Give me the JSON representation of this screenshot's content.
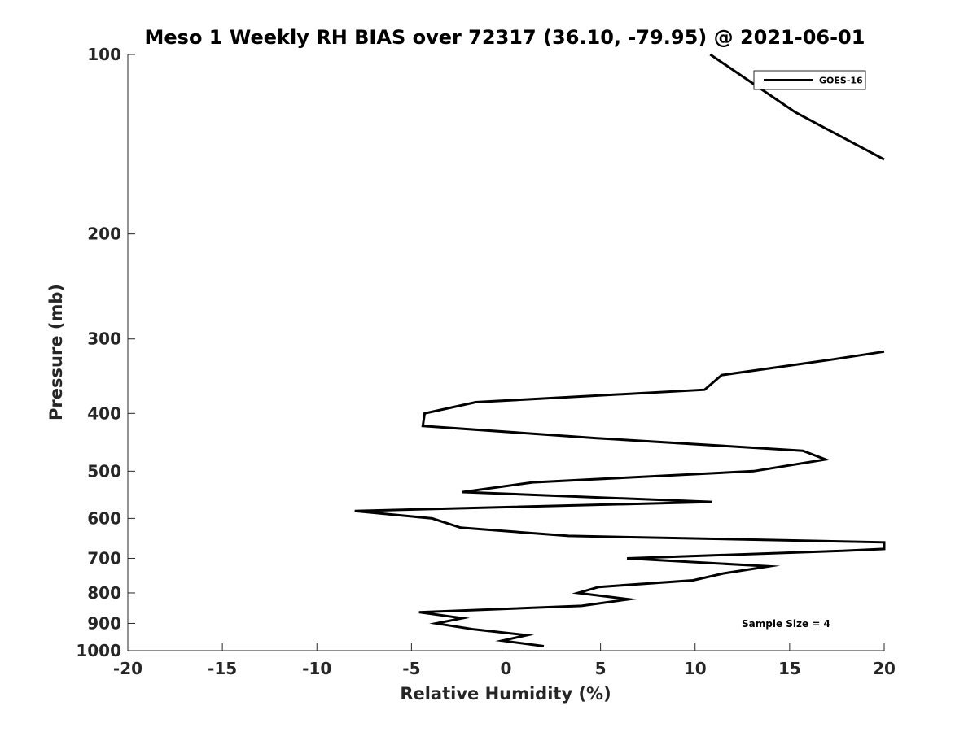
{
  "chart_data": {
    "type": "line",
    "title": "Meso 1 Weekly RH BIAS over 72317 (36.10, -79.95) @ 2021-06-01",
    "xlabel": "Relative Humidity (%)",
    "ylabel": "Pressure (mb)",
    "xlim": [
      -20,
      20
    ],
    "ylim": [
      100,
      1000
    ],
    "y_scale": "log",
    "y_reversed": true,
    "grid": false,
    "legend_position": "top-right",
    "x_ticks": [
      -20,
      -15,
      -10,
      -5,
      0,
      5,
      10,
      15,
      20
    ],
    "x_tick_labels": [
      "-20",
      "-15",
      "-10",
      "-5",
      "0",
      "5",
      "10",
      "15",
      "20"
    ],
    "y_ticks": [
      100,
      200,
      300,
      400,
      500,
      600,
      700,
      800,
      900,
      1000
    ],
    "y_tick_labels": [
      "100",
      "200",
      "300",
      "400",
      "500",
      "600",
      "700",
      "800",
      "900",
      "1000"
    ],
    "series": [
      {
        "name": "GOES-16",
        "color": "#000000",
        "segments": [
          [
            {
              "x": 10.8,
              "y": 100
            },
            {
              "x": 15.3,
              "y": 125
            },
            {
              "x": 20.0,
              "y": 150
            }
          ],
          [
            {
              "x": 20.0,
              "y": 315
            },
            {
              "x": 17.2,
              "y": 325
            },
            {
              "x": 11.4,
              "y": 345
            },
            {
              "x": 10.5,
              "y": 365
            },
            {
              "x": -1.6,
              "y": 383
            },
            {
              "x": -4.3,
              "y": 400
            },
            {
              "x": -4.4,
              "y": 420
            },
            {
              "x": 4.8,
              "y": 440
            },
            {
              "x": 15.7,
              "y": 462
            },
            {
              "x": 16.9,
              "y": 478
            },
            {
              "x": 13.1,
              "y": 500
            },
            {
              "x": 1.4,
              "y": 522
            },
            {
              "x": -2.3,
              "y": 542
            },
            {
              "x": 10.9,
              "y": 563
            },
            {
              "x": -8.0,
              "y": 583
            },
            {
              "x": -3.9,
              "y": 600
            },
            {
              "x": -2.4,
              "y": 622
            },
            {
              "x": 3.3,
              "y": 642
            },
            {
              "x": 20.0,
              "y": 658
            },
            {
              "x": 20.0,
              "y": 675
            },
            {
              "x": 17.8,
              "y": 680
            },
            {
              "x": 6.4,
              "y": 700
            },
            {
              "x": 13.9,
              "y": 722
            },
            {
              "x": 11.5,
              "y": 742
            },
            {
              "x": 9.9,
              "y": 762
            },
            {
              "x": 4.9,
              "y": 782
            },
            {
              "x": 3.8,
              "y": 800
            },
            {
              "x": 6.5,
              "y": 820
            },
            {
              "x": 4.0,
              "y": 841
            },
            {
              "x": -4.6,
              "y": 862
            },
            {
              "x": -2.3,
              "y": 882
            },
            {
              "x": -3.7,
              "y": 900
            },
            {
              "x": -1.7,
              "y": 921
            },
            {
              "x": 1.1,
              "y": 942
            },
            {
              "x": -0.2,
              "y": 962
            },
            {
              "x": 2.0,
              "y": 983
            }
          ]
        ]
      }
    ],
    "legend": {
      "entries": [
        "GOES-16"
      ]
    },
    "annotation": "Sample Size = 4"
  }
}
